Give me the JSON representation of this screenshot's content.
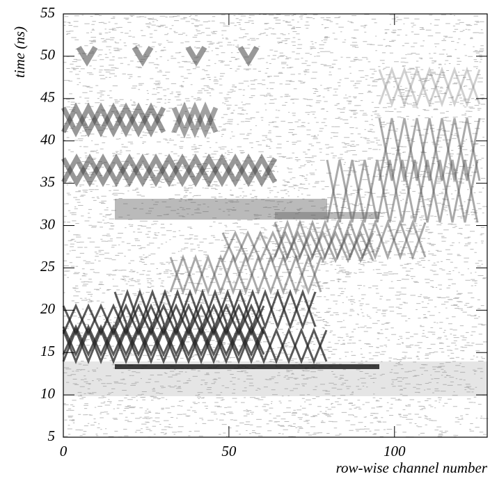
{
  "chart_data": {
    "type": "histogram2d",
    "x_label": "row-wise channel number",
    "y_label": "time (ns)",
    "xlim": [
      0,
      128
    ],
    "xticks": [
      0,
      50,
      100
    ],
    "ylim": [
      5,
      55
    ],
    "yticks": [
      5,
      10,
      15,
      20,
      25,
      30,
      35,
      40,
      45,
      50,
      55
    ],
    "color": "#000000"
  }
}
